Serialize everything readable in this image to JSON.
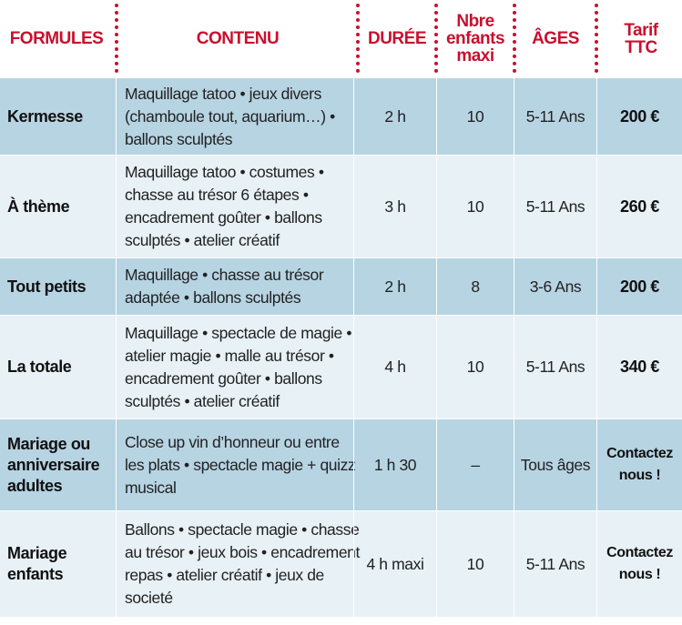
{
  "headers": [
    "FORMULES",
    "CONTENU",
    "DURÉE",
    "Nbre enfants maxi",
    "ÂGES",
    "Tarif TTC"
  ],
  "rows": [
    {
      "formule": "Kermesse",
      "contenu": "Maquillage tatoo • jeux divers (chamboule tout, aquarium…) • ballons sculptés",
      "duree": "2 h",
      "nb": "10",
      "ages": "5-11 Ans",
      "tarif": "200 €"
    },
    {
      "formule": "À thème",
      "contenu": "Maquillage tatoo • costumes • chasse au trésor 6 étapes • encadrement goûter • ballons sculptés • atelier créatif",
      "duree": "3 h",
      "nb": "10",
      "ages": "5-11 Ans",
      "tarif": "260 €"
    },
    {
      "formule": "Tout petits",
      "contenu": "Maquillage • chasse au trésor adaptée • ballons sculptés",
      "duree": "2 h",
      "nb": "8",
      "ages": "3-6 Ans",
      "tarif": "200 €"
    },
    {
      "formule": "La totale",
      "contenu": "Maquillage • spectacle de magie • atelier magie • malle au trésor • encadrement goûter • ballons sculptés • atelier créatif",
      "duree": "4 h",
      "nb": "10",
      "ages": "5-11 Ans",
      "tarif": "340 €"
    },
    {
      "formule": "Mariage ou anniversaire adultes",
      "contenu": "Close up vin d’honneur ou entre les plats • spectacle magie + quizz musical",
      "duree": "1 h 30",
      "nb": "–",
      "ages": "Tous âges",
      "tarif": "Contactez nous !"
    },
    {
      "formule": "Mariage enfants",
      "contenu": "Ballons • spectacle magie • chasse au trésor • jeux bois • encadrement repas • atelier créatif • jeux de societé",
      "duree": "4 h maxi",
      "nb": "10",
      "ages": "5-11 Ans",
      "tarif": "Contactez nous !"
    }
  ]
}
